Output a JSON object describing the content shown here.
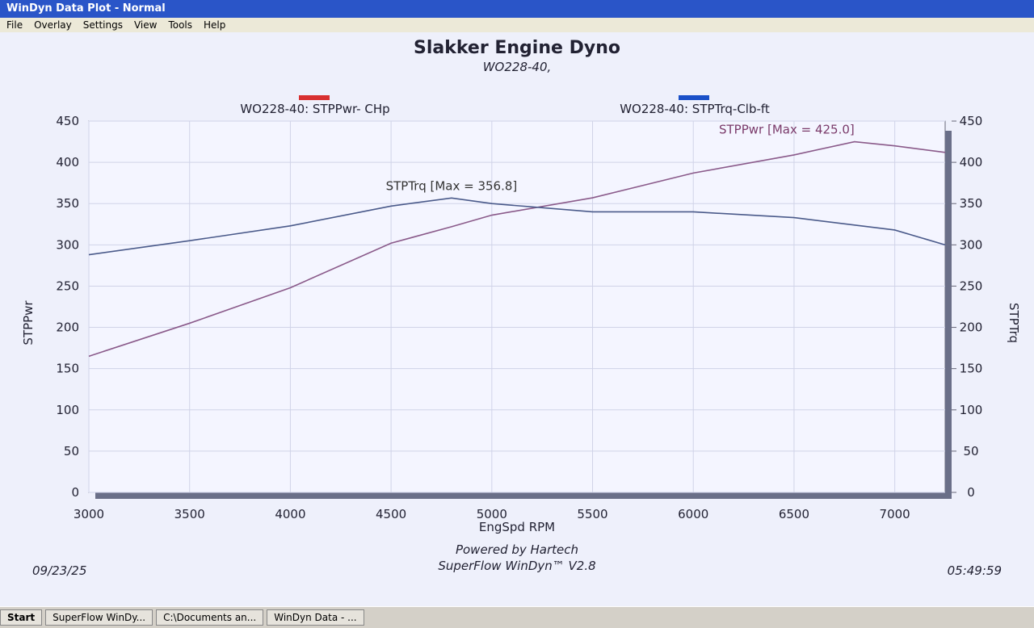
{
  "window": {
    "title": "WinDyn Data Plot - Normal",
    "menu": [
      "File",
      "Overlay",
      "Settings",
      "View",
      "Tools",
      "Help"
    ]
  },
  "chart_data": {
    "type": "line",
    "title": "Slakker Engine Dyno",
    "subtitle": "WO228-40,",
    "x_label": "EngSpd  RPM",
    "y_label": "STPPwr",
    "y2_label": "STPTrq",
    "x": [
      3000,
      3500,
      4000,
      4500,
      4800,
      5000,
      5500,
      6000,
      6500,
      6800,
      7000,
      7250
    ],
    "series": [
      {
        "name": "WO228-40: STPPwr- CHp",
        "color": "#d83030",
        "line_color": "#8a5a8a",
        "axis": "y",
        "values": [
          165,
          205,
          248,
          302,
          322,
          336,
          357,
          387,
          409,
          425,
          420,
          412
        ]
      },
      {
        "name": "WO228-40: STPTrq-Clb-ft",
        "color": "#1a50c8",
        "line_color": "#4a5a8a",
        "axis": "y2",
        "values": [
          288,
          305,
          323,
          347,
          356.8,
          350,
          340,
          340,
          333,
          324,
          318,
          300
        ]
      }
    ],
    "annotations": [
      "STPPwr [Max = 425.0]",
      "STPTrq [Max = 356.8]"
    ],
    "xlim": [
      3000,
      7250
    ],
    "xticks": [
      3000,
      3500,
      4000,
      4500,
      5000,
      5500,
      6000,
      6500,
      7000
    ],
    "ylim": [
      0,
      450
    ],
    "yticks": [
      0,
      50,
      100,
      150,
      200,
      250,
      300,
      350,
      400,
      450
    ],
    "y2lim": [
      0,
      450
    ],
    "y2ticks": [
      0,
      50,
      100,
      150,
      200,
      250,
      300,
      350,
      400,
      450
    ],
    "grid": true
  },
  "footer": {
    "date": "09/23/25",
    "credit": "Powered by Hartech",
    "software": "SuperFlow WinDyn™ V2.8",
    "time": "05:49:59"
  },
  "taskbar": {
    "start": "Start",
    "items": [
      "SuperFlow WinDy...",
      "C:\\Documents an...",
      "WinDyn Data - ..."
    ]
  }
}
